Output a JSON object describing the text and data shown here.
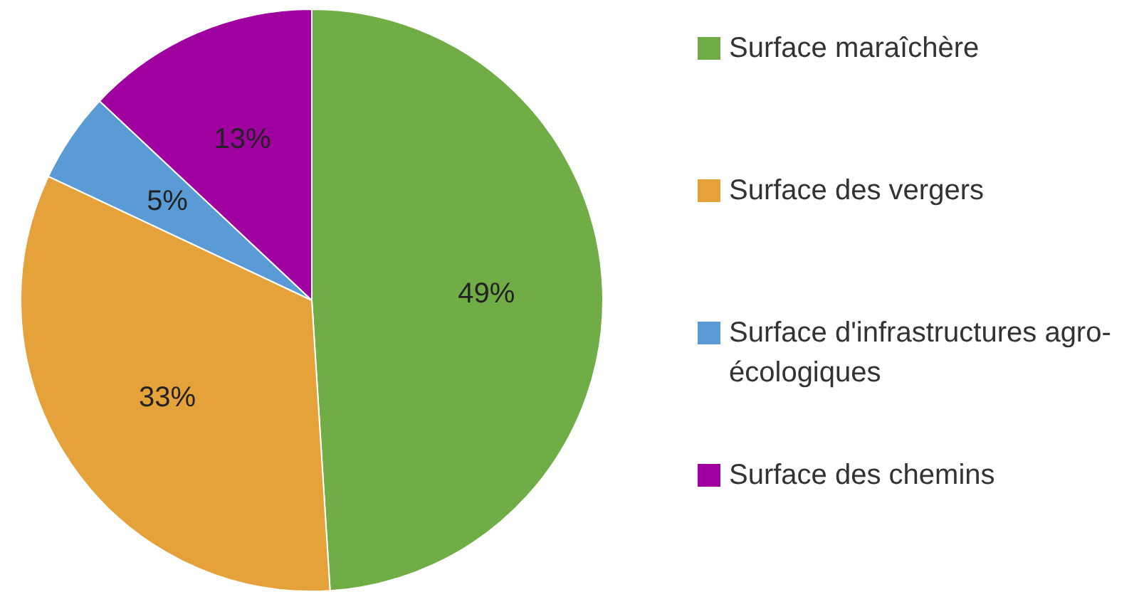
{
  "chart_data": {
    "type": "pie",
    "categories": [
      "Surface maraîchère",
      "Surface des vergers",
      "Surface d'infrastructures agro-écologiques",
      "Surface des chemins"
    ],
    "values": [
      49,
      33,
      5,
      13
    ],
    "colors": [
      "#70ad47",
      "#e6a23a",
      "#5b9bd5",
      "#a000a0"
    ],
    "value_labels": [
      "49%",
      "33%",
      "5%",
      "13%"
    ],
    "legend": "right"
  }
}
